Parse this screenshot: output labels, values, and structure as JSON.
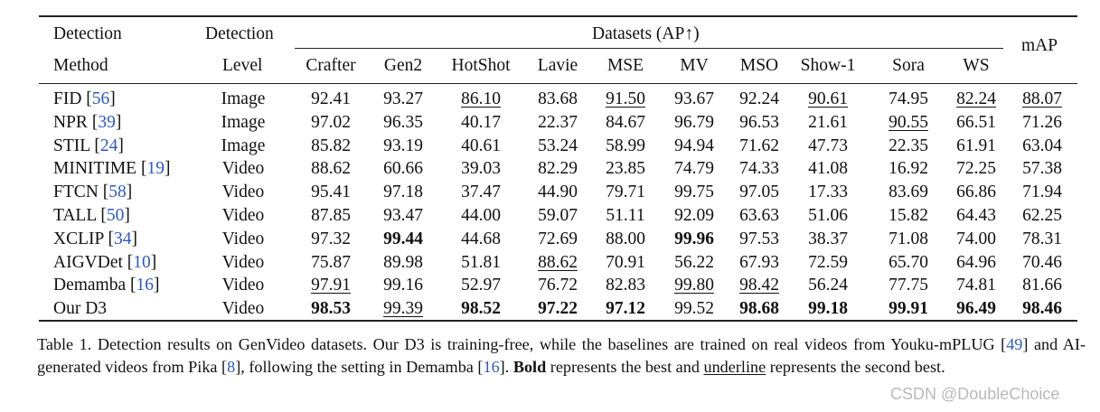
{
  "table": {
    "header": {
      "col1_line1": "Detection",
      "col1_line2": "Method",
      "col2_line1": "Detection",
      "col2_line2": "Level",
      "group_label": "Datasets (AP↑)",
      "datasets": [
        "Crafter",
        "Gen2",
        "HotShot",
        "Lavie",
        "MSE",
        "MV",
        "MSO",
        "Show-1",
        "Sora",
        "WS"
      ],
      "last_col": "mAP"
    },
    "rows": [
      {
        "method": "FID",
        "ref": "56",
        "level": "Image",
        "values": [
          "92.41",
          "93.27",
          "86.10",
          "83.68",
          "91.50",
          "93.67",
          "92.24",
          "90.61",
          "74.95",
          "82.24",
          "88.07"
        ],
        "style": [
          "",
          "",
          "u",
          "",
          "u",
          "",
          "",
          "u",
          "",
          "u",
          "u"
        ]
      },
      {
        "method": "NPR",
        "ref": "39",
        "level": "Image",
        "values": [
          "97.02",
          "96.35",
          "40.17",
          "22.37",
          "84.67",
          "96.79",
          "96.53",
          "21.61",
          "90.55",
          "66.51",
          "71.26"
        ],
        "style": [
          "",
          "",
          "",
          "",
          "",
          "",
          "",
          "",
          "u",
          "",
          ""
        ]
      },
      {
        "method": "STIL",
        "ref": "24",
        "level": "Image",
        "values": [
          "85.82",
          "93.19",
          "40.61",
          "53.24",
          "58.99",
          "94.94",
          "71.62",
          "47.73",
          "22.35",
          "61.91",
          "63.04"
        ],
        "style": [
          "",
          "",
          "",
          "",
          "",
          "",
          "",
          "",
          "",
          "",
          ""
        ]
      },
      {
        "method": "MINITIME",
        "ref": "19",
        "level": "Video",
        "values": [
          "88.62",
          "60.66",
          "39.03",
          "82.29",
          "23.85",
          "74.79",
          "74.33",
          "41.08",
          "16.92",
          "72.25",
          "57.38"
        ],
        "style": [
          "",
          "",
          "",
          "",
          "",
          "",
          "",
          "",
          "",
          "",
          ""
        ]
      },
      {
        "method": "FTCN",
        "ref": "58",
        "level": "Video",
        "values": [
          "95.41",
          "97.18",
          "37.47",
          "44.90",
          "79.71",
          "99.75",
          "97.05",
          "17.33",
          "83.69",
          "66.86",
          "71.94"
        ],
        "style": [
          "",
          "",
          "",
          "",
          "",
          "",
          "",
          "",
          "",
          "",
          ""
        ]
      },
      {
        "method": "TALL",
        "ref": "50",
        "level": "Video",
        "values": [
          "87.85",
          "93.47",
          "44.00",
          "59.07",
          "51.11",
          "92.09",
          "63.63",
          "51.06",
          "15.82",
          "64.43",
          "62.25"
        ],
        "style": [
          "",
          "",
          "",
          "",
          "",
          "",
          "",
          "",
          "",
          "",
          ""
        ]
      },
      {
        "method": "XCLIP",
        "ref": "34",
        "level": "Video",
        "values": [
          "97.32",
          "99.44",
          "44.68",
          "72.69",
          "88.00",
          "99.96",
          "97.53",
          "38.37",
          "71.08",
          "74.00",
          "78.31"
        ],
        "style": [
          "",
          "b",
          "",
          "",
          "",
          "b",
          "",
          "",
          "",
          "",
          ""
        ]
      },
      {
        "method": "AIGVDet",
        "ref": "10",
        "level": "Video",
        "values": [
          "75.87",
          "89.98",
          "51.81",
          "88.62",
          "70.91",
          "56.22",
          "67.93",
          "72.59",
          "65.70",
          "64.96",
          "70.46"
        ],
        "style": [
          "",
          "",
          "",
          "u",
          "",
          "",
          "",
          "",
          "",
          "",
          ""
        ]
      },
      {
        "method": "Demamba",
        "ref": "16",
        "level": "Video",
        "values": [
          "97.91",
          "99.16",
          "52.97",
          "76.72",
          "82.83",
          "99.80",
          "98.42",
          "56.24",
          "77.75",
          "74.81",
          "81.66"
        ],
        "style": [
          "u",
          "",
          "",
          "",
          "",
          "u",
          "u",
          "",
          "",
          "",
          ""
        ]
      },
      {
        "method": "Our D3",
        "ref": "",
        "level": "Video",
        "values": [
          "98.53",
          "99.39",
          "98.52",
          "97.22",
          "97.12",
          "99.52",
          "98.68",
          "99.18",
          "99.91",
          "96.49",
          "98.46"
        ],
        "style": [
          "b",
          "u",
          "b",
          "b",
          "b",
          "",
          "b",
          "b",
          "b",
          "b",
          "b"
        ]
      }
    ]
  },
  "caption": {
    "t1": "Table 1.  Detection results on GenVideo datasets.  Our D3 is training-free, while the baselines are trained on real videos from Youku-mPLUG [",
    "r1": "49",
    "t2": "] and AI-generated videos from Pika [",
    "r2": "8",
    "t3": "], following the setting in Demamba [",
    "r3": "16",
    "t4": "]. ",
    "bold": "Bold",
    "t5": " represents the best and ",
    "underline": "underline",
    "t6": " represents the second best."
  },
  "watermark": "CSDN @DoubleChoice",
  "colors": {
    "ref_link": "#2b57c7",
    "rule": "#222222",
    "watermark": "#b9b9b9"
  }
}
